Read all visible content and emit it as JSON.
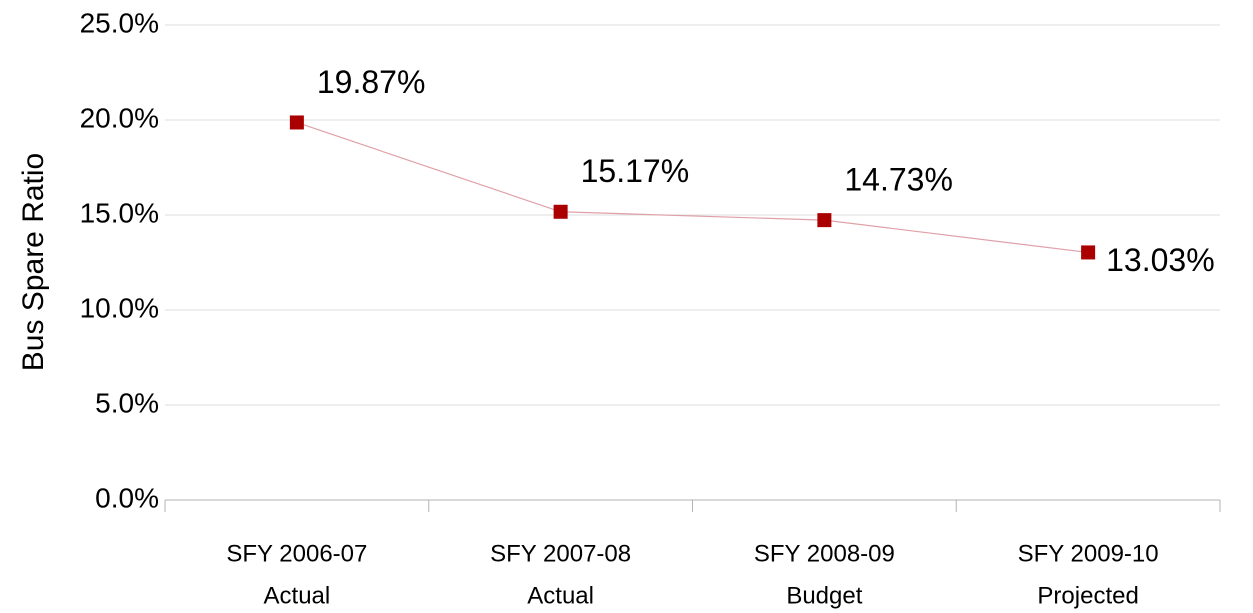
{
  "chart_data": {
    "type": "line",
    "y_label": "Bus Spare Ratio",
    "categories": [
      [
        "SFY 2006-07",
        "Actual"
      ],
      [
        "SFY 2007-08",
        "Actual"
      ],
      [
        "SFY 2008-09",
        "Budget"
      ],
      [
        "SFY 2009-10",
        "Projected"
      ]
    ],
    "series": [
      {
        "color": "#aa0000",
        "line_color": "#e0a0a8",
        "values": [
          19.87,
          15.17,
          14.73,
          13.03
        ],
        "value_labels": [
          "19.87%",
          "15.17%",
          "14.73%",
          "13.03%"
        ]
      }
    ],
    "ylim": [
      0,
      25
    ],
    "yticks": [
      {
        "value": 0,
        "label": "0.0%"
      },
      {
        "value": 5,
        "label": "5.0%"
      },
      {
        "value": 10,
        "label": "10.0%"
      },
      {
        "value": 15,
        "label": "15.0%"
      },
      {
        "value": 20,
        "label": "20.0%"
      },
      {
        "value": 25,
        "label": "25.0%"
      }
    ],
    "grid": true
  }
}
